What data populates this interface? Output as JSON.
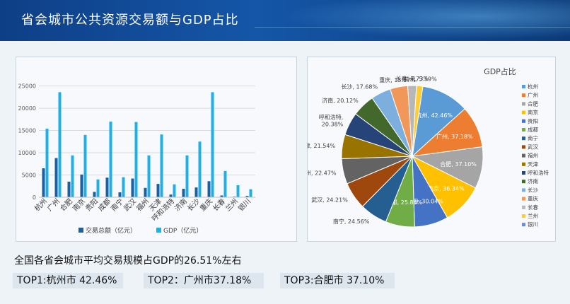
{
  "title": "省会城市公共资源交易额与GDP占比",
  "summary": "全国各省会城市平均交易规模占GDP的26.51%左右",
  "top": [
    "TOP1:杭州市 42.46%",
    "TOP2：广州市37.18%",
    "TOP3:合肥市 37.10%"
  ],
  "colors": {
    "trade": "#1f5f9b",
    "gdp": "#1fb0e8"
  },
  "chart_data": [
    {
      "type": "bar",
      "categories": [
        "杭州",
        "广州",
        "合肥",
        "南京",
        "贵阳",
        "成都",
        "南宁",
        "武汉",
        "福州",
        "天津",
        "呼和浩特",
        "济南",
        "长沙",
        "重庆",
        "长春",
        "兰州",
        "银川"
      ],
      "series": [
        {
          "name": "交易总额（亿元）",
          "values": [
            6500,
            8800,
            3500,
            5100,
            1200,
            4400,
            1100,
            4200,
            2100,
            3000,
            600,
            1900,
            2200,
            3600,
            400,
            150,
            300
          ]
        },
        {
          "name": "GDP（亿元）",
          "values": [
            15400,
            23600,
            9400,
            14000,
            4000,
            17000,
            4500,
            16900,
            9400,
            14100,
            2900,
            9400,
            12500,
            23600,
            5900,
            2700,
            1800
          ]
        }
      ],
      "yticks": [
        0,
        5000,
        10000,
        15000,
        20000,
        25000
      ],
      "ylim": [
        0,
        27000
      ]
    },
    {
      "type": "pie",
      "title": "GDP占比",
      "labels": [
        "杭州",
        "广州",
        "合肥",
        "南京",
        "贵阳",
        "成都",
        "南宁",
        "武汉",
        "福州",
        "天津",
        "呼和浩特",
        "济南",
        "长沙",
        "重庆",
        "长春",
        "兰州",
        "银川"
      ],
      "values": [
        42.46,
        37.18,
        37.1,
        36.34,
        30.04,
        25.86,
        24.56,
        24.21,
        22.47,
        21.54,
        20.38,
        20.12,
        17.68,
        15.67,
        7.73,
        5.59,
        0
      ],
      "data_labels": [
        "杭州, 42.46%",
        "广州, 37.18%",
        "合肥, 37.10%",
        "南京, 36.34%",
        "贵阳, 30.04%",
        "成都, 25.86%",
        "南宁, 24.56%",
        "武汉, 24.21%",
        "福州, 22.47%",
        "天津, 21.54%",
        "呼和浩特, 20.38%",
        "济南, 20.12%",
        "长沙, 17.68%",
        "重庆, 15.67%",
        "长春, 7.73%",
        "兰州, 5.59%",
        ""
      ],
      "colors": [
        "#5b9bd5",
        "#ed7d31",
        "#a5a5a5",
        "#ffc000",
        "#4472c4",
        "#70ad47",
        "#255e91",
        "#9e480e",
        "#636363",
        "#997300",
        "#264478",
        "#43682b",
        "#7cafdd",
        "#f1975a",
        "#b7b7b7",
        "#ffcd33",
        "#698ed0"
      ],
      "legend_position": "right"
    }
  ]
}
